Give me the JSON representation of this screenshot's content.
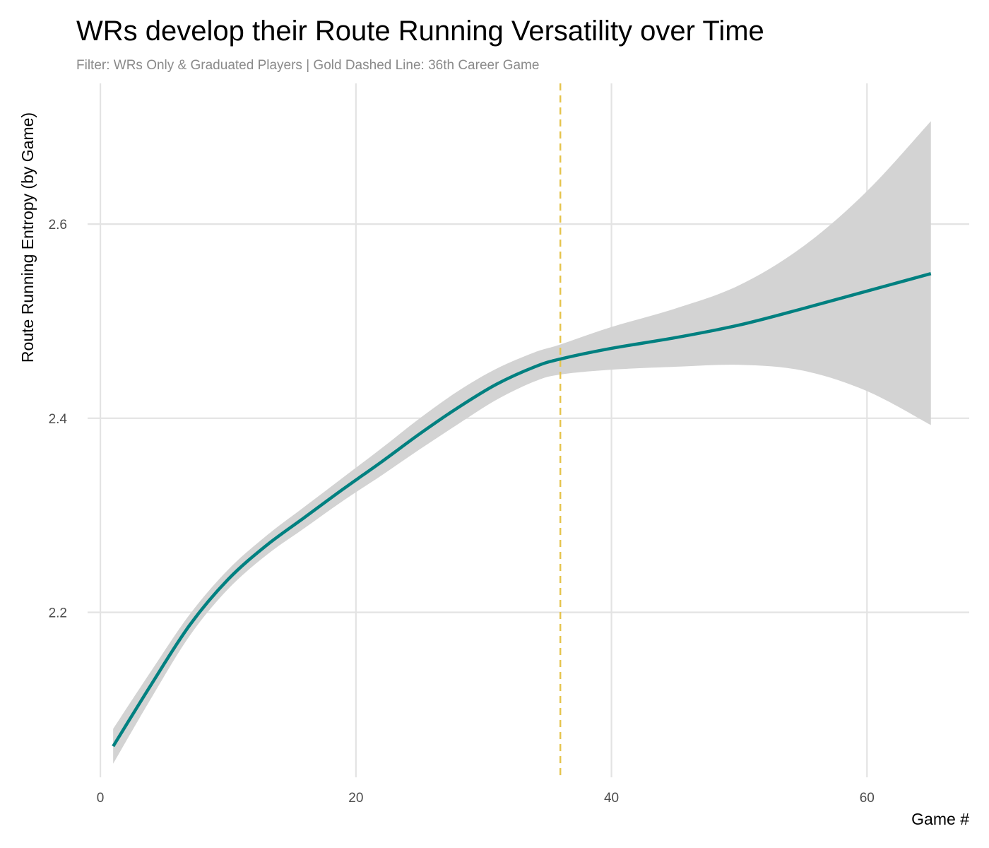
{
  "chart_data": {
    "type": "line",
    "title": "WRs develop their Route Running Versatility over Time",
    "subtitle": "Filter: WRs Only & Graduated Players | Gold Dashed Line: 36th Career Game",
    "xlabel": "Game #",
    "ylabel": "Route Running Entropy (by Game)",
    "xlim": [
      -1,
      68
    ],
    "ylim": [
      2.03,
      2.745
    ],
    "x_ticks": [
      0,
      20,
      40,
      60
    ],
    "y_ticks": [
      2.2,
      2.4,
      2.6
    ],
    "x_tick_labels": [
      "0",
      "20",
      "40",
      "60"
    ],
    "y_tick_labels": [
      "2.2",
      "2.4",
      "2.6"
    ],
    "grid": true,
    "legend": "none",
    "series": [
      {
        "type": "smooth",
        "color": "#008080",
        "x": [
          1,
          4,
          7,
          10,
          13,
          16,
          19,
          22,
          25,
          28,
          31,
          34,
          36,
          40,
          45,
          50,
          55,
          60,
          65
        ],
        "y": [
          2.062,
          2.126,
          2.187,
          2.234,
          2.269,
          2.298,
          2.327,
          2.355,
          2.384,
          2.411,
          2.435,
          2.453,
          2.461,
          2.472,
          2.483,
          2.496,
          2.513,
          2.531,
          2.549
        ],
        "lower": [
          2.044,
          2.112,
          2.176,
          2.224,
          2.259,
          2.287,
          2.315,
          2.341,
          2.368,
          2.394,
          2.419,
          2.438,
          2.445,
          2.45,
          2.453,
          2.455,
          2.449,
          2.428,
          2.393
        ],
        "upper": [
          2.08,
          2.14,
          2.198,
          2.244,
          2.279,
          2.309,
          2.339,
          2.369,
          2.4,
          2.428,
          2.451,
          2.468,
          2.476,
          2.494,
          2.513,
          2.537,
          2.577,
          2.634,
          2.706
        ]
      }
    ],
    "reference_line": {
      "x": 36,
      "color": "#E6C34C",
      "style": "dashed"
    },
    "band_color": "#d3d3d3",
    "grid_color": "#e3e3e3"
  }
}
